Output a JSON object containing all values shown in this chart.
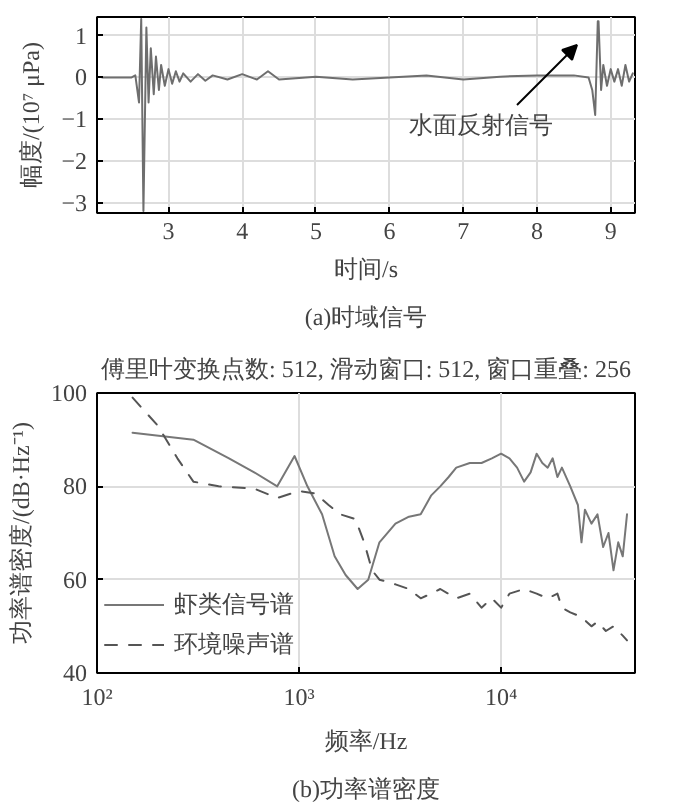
{
  "chart_data": [
    {
      "type": "line",
      "xlabel": "时间/s",
      "ylabel": "幅度/(10⁷ μPa)",
      "xlim": [
        2.03,
        9.33
      ],
      "ylim": [
        -3.25,
        1.45
      ],
      "xticks": [
        3,
        4,
        5,
        6,
        7,
        8,
        9
      ],
      "yticks": [
        -3,
        -2,
        -1,
        0,
        1
      ],
      "grid": true,
      "annotations": [
        "水面反射信号",
        "(a)时域信号"
      ],
      "series": [
        {
          "color": "#6e6e6e",
          "x": [
            2.1,
            2.5,
            2.55,
            2.6,
            2.63,
            2.66,
            2.7,
            2.73,
            2.76,
            2.8,
            2.83,
            2.87,
            2.9,
            2.95,
            3.0,
            3.05,
            3.1,
            3.15,
            3.2,
            3.3,
            3.4,
            3.5,
            3.6,
            3.8,
            4.0,
            4.2,
            4.35,
            4.5,
            5.0,
            5.5,
            6.0,
            6.5,
            7.0,
            7.5,
            8.0,
            8.5,
            8.7,
            8.75,
            8.79,
            8.825,
            8.835,
            8.87,
            8.9,
            8.95,
            9.0,
            9.05,
            9.1,
            9.15,
            9.2,
            9.25,
            9.3
          ],
          "values": [
            0,
            0,
            0.05,
            -0.6,
            1.4,
            -3.2,
            1.2,
            -0.6,
            0.7,
            -0.4,
            0.5,
            -0.3,
            0.3,
            -0.2,
            0.2,
            -0.15,
            0.15,
            -0.1,
            0.1,
            -0.1,
            0.08,
            -0.08,
            0.05,
            -0.05,
            0.08,
            -0.05,
            0.15,
            -0.05,
            0.02,
            -0.05,
            0,
            0.05,
            -0.05,
            0.02,
            0.05,
            0.05,
            0,
            -0.3,
            -0.9,
            1.35,
            1.35,
            -0.3,
            0.3,
            -0.2,
            0.2,
            -0.1,
            0.2,
            -0.2,
            0.3,
            -0.1,
            0.1
          ]
        }
      ]
    },
    {
      "type": "line",
      "title": "傅里叶变换点数: 512, 滑动窗口: 512, 窗口重叠: 256",
      "xlabel": "频率/Hz",
      "ylabel": "功率谱密度/(dB·Hz⁻¹)",
      "log": "x",
      "xlim": [
        100,
        46000
      ],
      "ylim": [
        40,
        100
      ],
      "xticks": [
        {
          "value": 100,
          "label": "10²"
        },
        {
          "value": 1000,
          "label": "10³"
        },
        {
          "value": 10000,
          "label": "10⁴"
        }
      ],
      "yticks": [
        40,
        60,
        80,
        100
      ],
      "grid": true,
      "legend": "bottom left",
      "annotations": [
        "(b)功率谱密度"
      ],
      "series": [
        {
          "name": "虾类信号谱",
          "color": "#777777",
          "line_style": "solid",
          "x": [
            150,
            300,
            450,
            600,
            780,
            950,
            1100,
            1300,
            1500,
            1700,
            1950,
            2200,
            2500,
            3000,
            3500,
            4000,
            4500,
            5000,
            5500,
            6000,
            7000,
            8000,
            9000,
            10000,
            11000,
            12000,
            13000,
            14000,
            15000,
            16000,
            17000,
            18000,
            19000,
            20000,
            22000,
            24000,
            25000,
            26000,
            28000,
            30000,
            32000,
            34000,
            36000,
            38000,
            40000,
            42000
          ],
          "values": [
            91.5,
            90,
            86,
            83,
            80,
            86.5,
            80,
            74,
            65,
            61,
            58,
            60,
            68,
            72,
            73.5,
            74,
            78,
            80,
            82,
            84,
            85,
            85,
            86,
            87,
            86,
            84,
            81,
            83,
            87,
            85,
            84,
            86,
            82,
            84,
            80,
            76,
            68,
            75,
            72,
            74,
            67,
            70,
            62,
            68,
            65,
            74
          ]
        },
        {
          "name": "环境噪声谱",
          "color": "#555555",
          "line_style": "dashed",
          "x": [
            150,
            200,
            250,
            300,
            400,
            600,
            780,
            1000,
            1200,
            1400,
            1600,
            1900,
            2100,
            2300,
            2500,
            3000,
            3500,
            4000,
            4500,
            5000,
            6000,
            7000,
            8000,
            9000,
            10000,
            11000,
            13000,
            15000,
            17000,
            19000,
            20000,
            22000,
            25000,
            28000,
            30000,
            33000,
            36000,
            40000,
            42000
          ],
          "values": [
            99,
            93,
            86,
            81,
            80,
            79.5,
            77.5,
            79,
            78.5,
            76,
            74,
            73,
            68,
            62,
            60,
            59,
            58,
            56,
            57,
            58,
            56,
            57,
            54,
            56,
            54,
            57,
            58,
            57,
            56,
            57,
            54,
            53,
            52,
            50,
            51,
            49,
            50,
            48,
            47
          ]
        }
      ]
    }
  ]
}
